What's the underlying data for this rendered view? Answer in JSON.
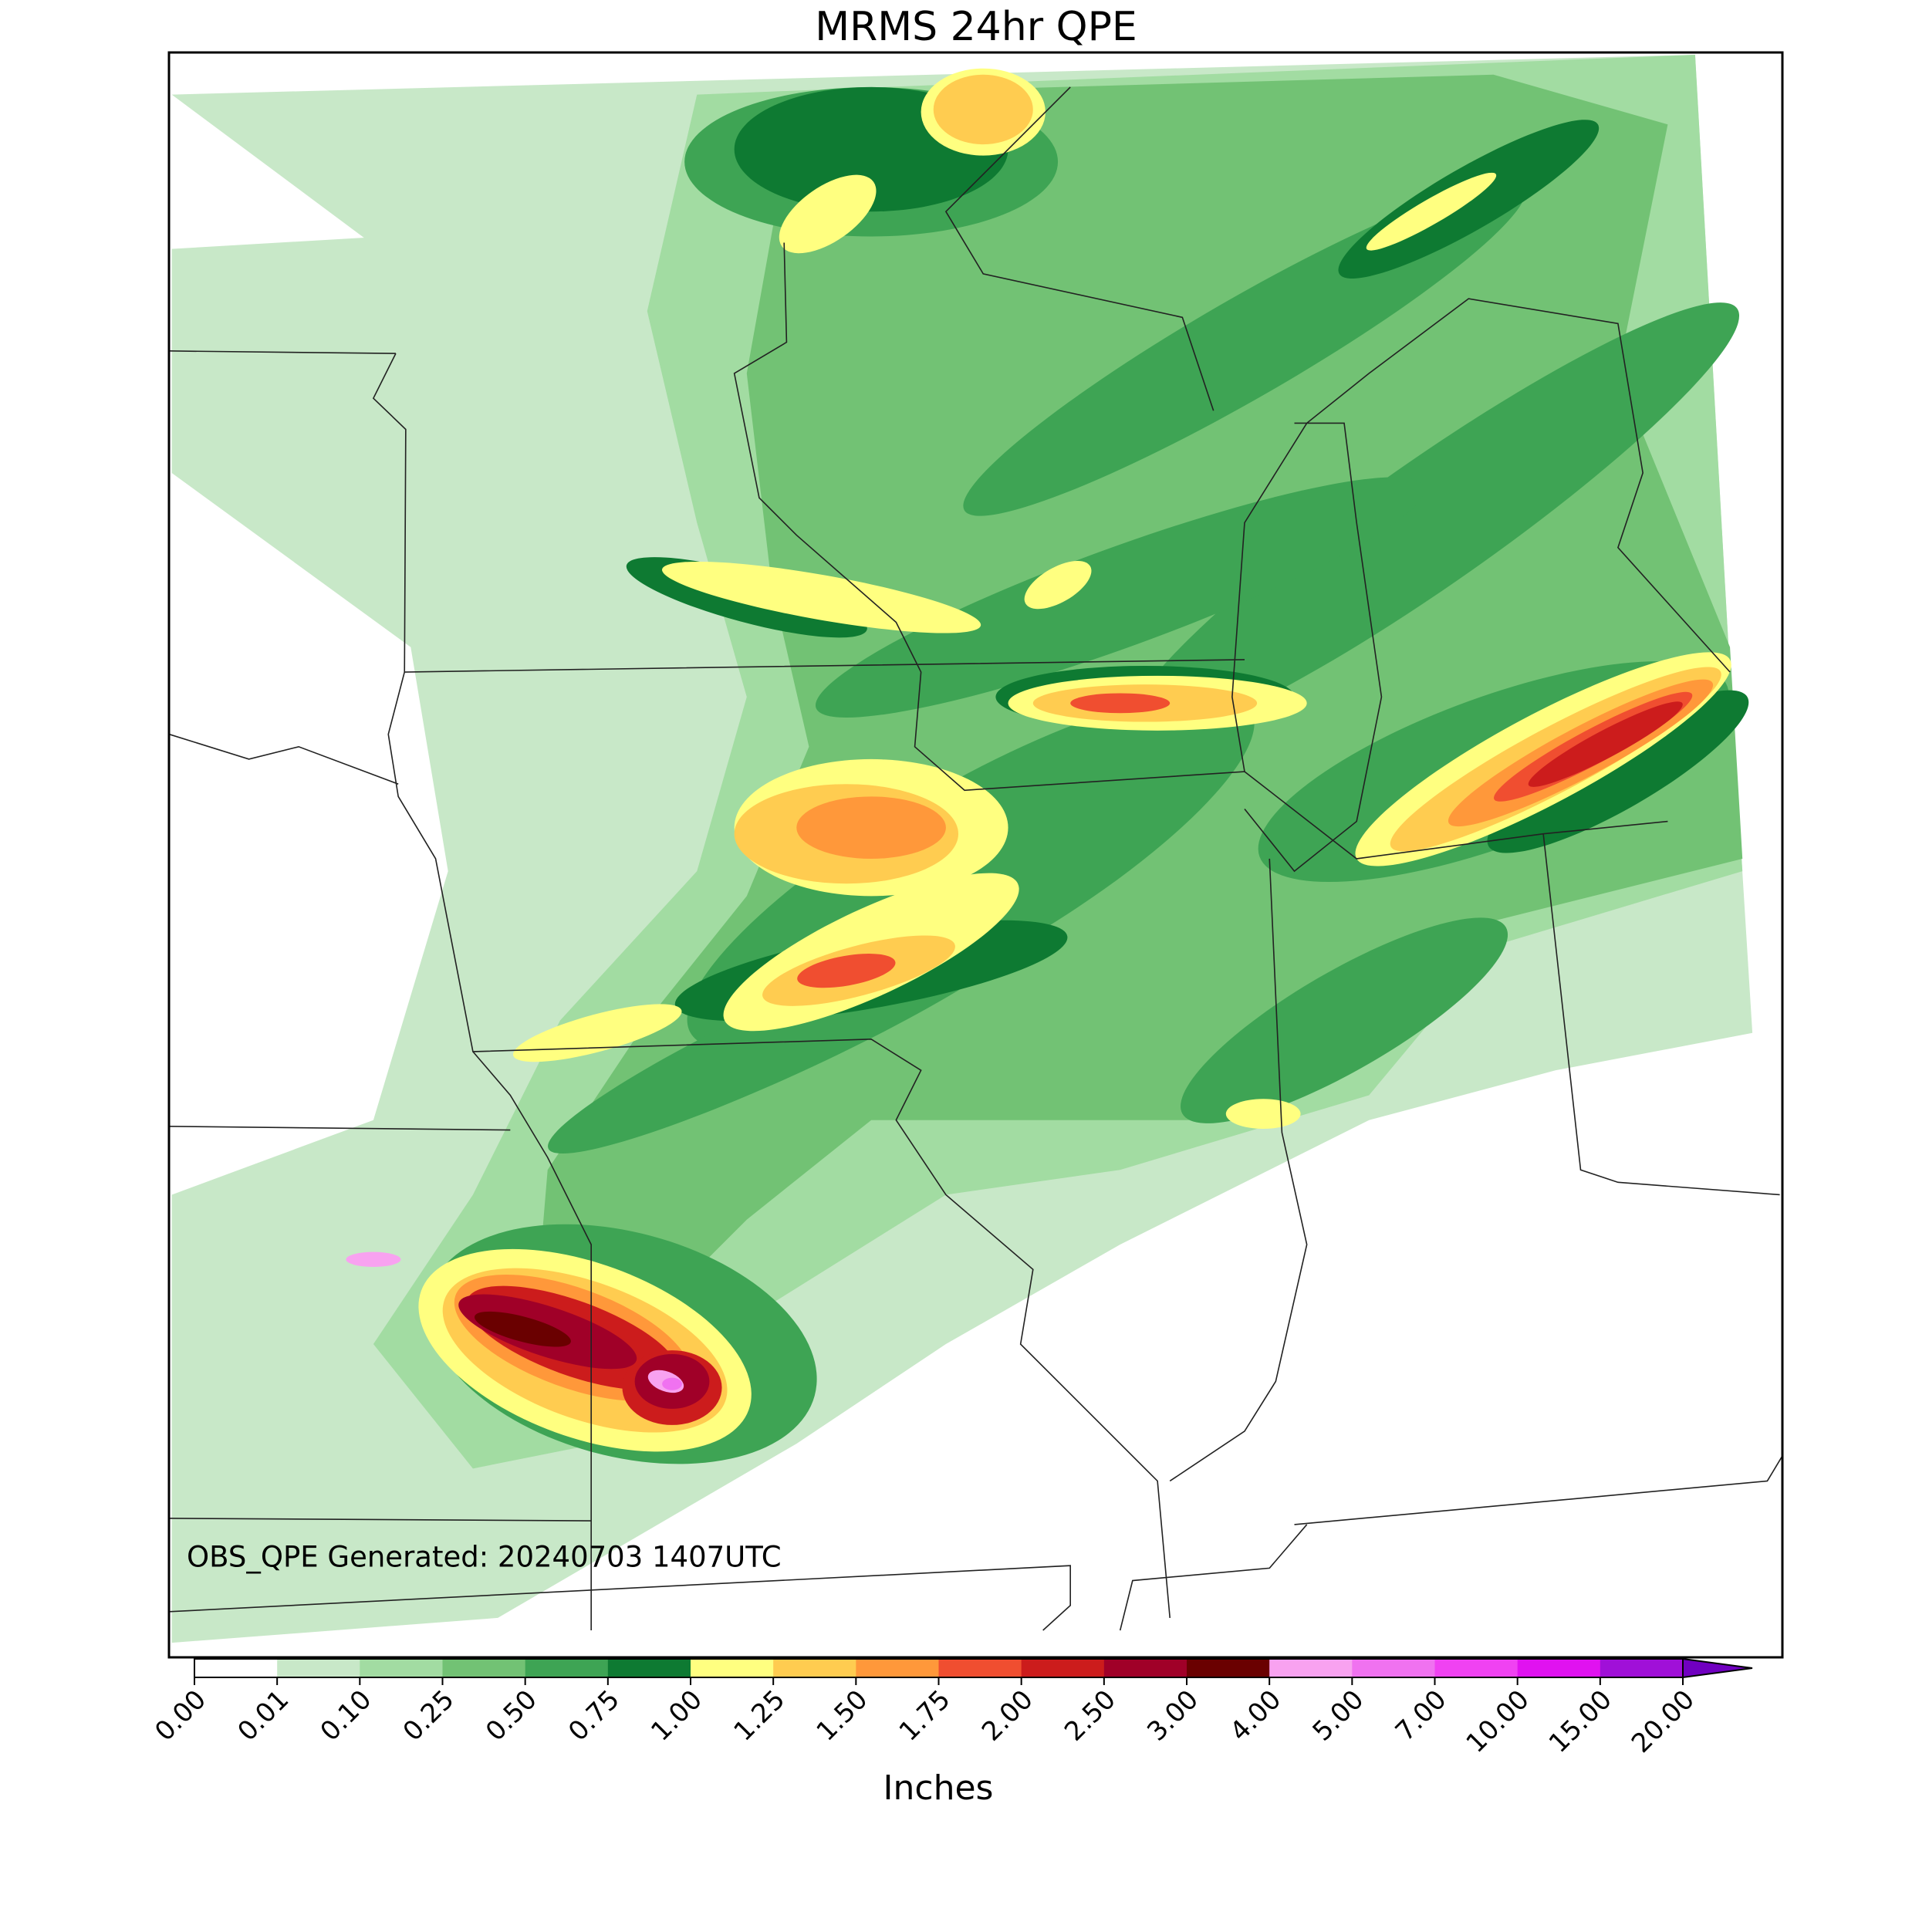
{
  "title": "MRMS 24hr QPE",
  "annotation": "OBS_QPE Generated: 20240703 1407UTC",
  "colorbar": {
    "label": "Inches",
    "ticks": [
      {
        "value": 0,
        "label": "0.00"
      },
      {
        "value": 0.01,
        "label": "0.01"
      },
      {
        "value": 0.1,
        "label": "0.10"
      },
      {
        "value": 0.25,
        "label": "0.25"
      },
      {
        "value": 0.5,
        "label": "0.50"
      },
      {
        "value": 0.75,
        "label": "0.75"
      },
      {
        "value": 1,
        "label": "1.00"
      },
      {
        "value": 1.25,
        "label": "1.25"
      },
      {
        "value": 1.5,
        "label": "1.50"
      },
      {
        "value": 1.75,
        "label": "1.75"
      },
      {
        "value": 2,
        "label": "2.00"
      },
      {
        "value": 2.5,
        "label": "2.50"
      },
      {
        "value": 3,
        "label": "3.00"
      },
      {
        "value": 4,
        "label": "4.00"
      },
      {
        "value": 5,
        "label": "5.00"
      },
      {
        "value": 7,
        "label": "7.00"
      },
      {
        "value": 10,
        "label": "10.00"
      },
      {
        "value": 15,
        "label": "15.00"
      },
      {
        "value": 20,
        "label": "20.00"
      }
    ],
    "colors": [
      "#ffffff",
      "#c8e8c8",
      "#a2dca2",
      "#72c274",
      "#3ea454",
      "#0e7a32",
      "#ffff80",
      "#ffcc50",
      "#ff983a",
      "#f04e30",
      "#cc1c1c",
      "#a00028",
      "#6a0000",
      "#f8a2f0",
      "#f072f0",
      "#f042f2",
      "#e012f0",
      "#a010d8"
    ],
    "extend_color": "#7000c0"
  }
}
